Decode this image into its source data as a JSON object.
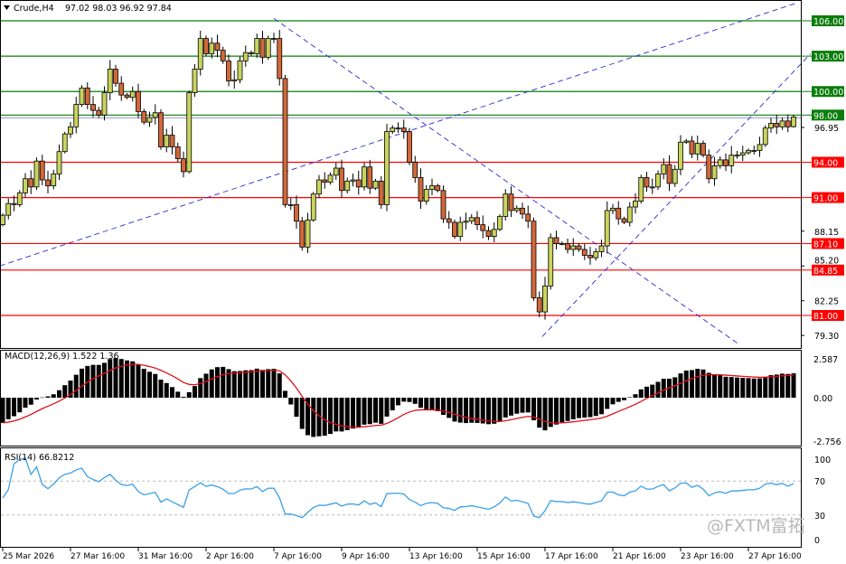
{
  "header": {
    "symbol": "Crude,H4",
    "ohlc": "97.02 98.03 96.92 97.84",
    "menu_icon": "triangle-down-icon"
  },
  "watermark": "@FXTM富拓",
  "colors": {
    "up": "#c9d45c",
    "down": "#d2683a",
    "support": "#ff0000",
    "resistance": "#0a7d0a",
    "trendline": "#2b2bd0",
    "macd_signal": "#e0101a",
    "rsi": "#3aa0e8"
  },
  "chart_data": {
    "type": "candlestick",
    "title": "Crude,H4",
    "close": [
      89.5,
      90.5,
      90.4,
      91.4,
      92.6,
      91.9,
      94.1,
      92.5,
      92.0,
      93.0,
      94.9,
      96.4,
      97.0,
      98.9,
      100.3,
      98.9,
      98.4,
      98.0,
      99.9,
      101.9,
      100.7,
      99.7,
      99.5,
      100.0,
      98.3,
      97.4,
      97.8,
      98.2,
      95.3,
      96.3,
      95.3,
      94.3,
      93.2,
      99.9,
      101.9,
      104.5,
      103.2,
      104.1,
      103.5,
      102.6,
      100.9,
      101.0,
      102.6,
      103.3,
      103.2,
      104.5,
      102.9,
      104.5,
      104.5,
      101.1,
      90.4,
      90.4,
      89.0,
      86.8,
      89.1,
      91.3,
      92.5,
      92.3,
      92.9,
      93.5,
      91.6,
      92.4,
      92.5,
      91.9,
      93.6,
      91.8,
      92.4,
      90.4,
      96.6,
      96.9,
      96.9,
      96.6,
      94.0,
      92.7,
      90.7,
      91.7,
      92.0,
      91.6,
      89.2,
      88.9,
      87.7,
      88.9,
      89.0,
      89.3,
      88.7,
      88.2,
      87.7,
      88.3,
      89.4,
      91.3,
      89.9,
      90.1,
      89.6,
      89.0,
      82.5,
      81.3,
      83.5,
      87.6,
      87.1,
      87.1,
      86.6,
      86.9,
      86.6,
      86.1,
      85.9,
      86.4,
      86.9,
      89.9,
      90.1,
      89.2,
      88.9,
      90.2,
      90.7,
      92.7,
      91.9,
      91.9,
      93.0,
      93.8,
      92.2,
      93.4,
      95.7,
      95.8,
      94.7,
      95.6,
      94.6,
      92.6,
      93.7,
      94.2,
      93.7,
      94.6,
      94.6,
      94.8,
      95.0,
      95.0,
      95.5,
      96.9,
      97.3,
      97.0,
      97.5,
      97.0,
      97.84
    ],
    "last_bar": {
      "open": 97.02,
      "high": 98.03,
      "low": 96.92,
      "close": 97.84
    },
    "ylim": [
      78.5,
      107.5
    ],
    "y_ticks": [
      "96.95",
      "88.15",
      "85.20",
      "82.25",
      "79.30"
    ],
    "x_ticks": [
      "25 Mar 2026",
      "27 Mar 16:00",
      "31 Mar 16:00",
      "2 Apr 16:00",
      "7 Apr 16:00",
      "9 Apr 16:00",
      "13 Apr 16:00",
      "15 Apr 16:00",
      "17 Apr 16:00",
      "21 Apr 16:00",
      "23 Apr 16:00",
      "27 Apr 16:00"
    ],
    "resistance_levels": [
      {
        "value": 106.0,
        "label": "106.00"
      },
      {
        "value": 103.0,
        "label": "103.00"
      },
      {
        "value": 100.0,
        "label": "100.00"
      },
      {
        "value": 98.0,
        "label": "98.00"
      }
    ],
    "support_levels": [
      {
        "value": 94.0,
        "label": "94.00"
      },
      {
        "value": 91.0,
        "label": "91.00"
      },
      {
        "value": 87.1,
        "label": "87.10"
      },
      {
        "value": 84.85,
        "label": "84.85"
      },
      {
        "value": 81.0,
        "label": "81.00"
      }
    ],
    "trendlines": [
      {
        "from": [
          -0.5,
          85.2
        ],
        "to": [
          140.5,
          107.5
        ]
      },
      {
        "from": [
          48,
          106.2
        ],
        "to": [
          130.5,
          78.5
        ]
      },
      {
        "from": [
          95.5,
          79.2
        ],
        "to": [
          143,
          103.2
        ]
      }
    ],
    "macd": {
      "label": "MACD(12,26,9) 1.522 1.36",
      "y_ticks": [
        "2.587",
        "0.00",
        "-2.756"
      ],
      "ylim": [
        -2.756,
        2.587
      ]
    },
    "rsi": {
      "label": "RSI(14) 66.8212",
      "y_ticks": [
        "100",
        "70",
        "30",
        "0"
      ],
      "levels": [
        70,
        30
      ]
    }
  }
}
